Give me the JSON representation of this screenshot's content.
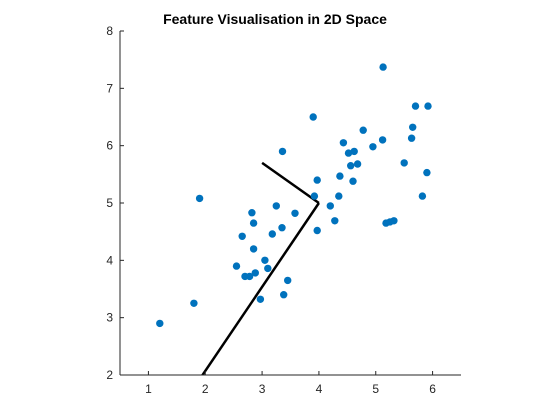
{
  "chart_data": {
    "type": "scatter",
    "title": "Feature Visualisation in 2D Space",
    "xlabel": "",
    "ylabel": "",
    "xlim": [
      0.5,
      6.5
    ],
    "ylim": [
      2,
      8
    ],
    "xticks": [
      1,
      2,
      3,
      4,
      5,
      6
    ],
    "yticks": [
      2,
      3,
      4,
      5,
      6,
      7,
      8
    ],
    "grid": false,
    "legend": "none",
    "colors": {
      "points": "#0072BD",
      "lines": "#000000",
      "axes": "#262626"
    },
    "points": [
      [
        1.2,
        2.9
      ],
      [
        1.8,
        3.25
      ],
      [
        1.9,
        5.08
      ],
      [
        2.55,
        3.9
      ],
      [
        2.65,
        4.42
      ],
      [
        2.7,
        3.72
      ],
      [
        2.78,
        3.72
      ],
      [
        2.82,
        4.83
      ],
      [
        2.85,
        4.2
      ],
      [
        2.85,
        4.65
      ],
      [
        2.88,
        3.78
      ],
      [
        2.97,
        3.32
      ],
      [
        3.05,
        4.0
      ],
      [
        3.1,
        3.86
      ],
      [
        3.18,
        4.46
      ],
      [
        3.25,
        4.95
      ],
      [
        3.35,
        4.57
      ],
      [
        3.36,
        5.9
      ],
      [
        3.38,
        3.4
      ],
      [
        3.45,
        3.65
      ],
      [
        3.58,
        4.82
      ],
      [
        3.9,
        6.5
      ],
      [
        3.92,
        5.12
      ],
      [
        3.97,
        4.52
      ],
      [
        3.97,
        5.4
      ],
      [
        4.2,
        4.95
      ],
      [
        4.28,
        4.69
      ],
      [
        4.35,
        5.12
      ],
      [
        4.37,
        5.47
      ],
      [
        4.43,
        6.05
      ],
      [
        4.52,
        5.87
      ],
      [
        4.56,
        5.65
      ],
      [
        4.6,
        5.38
      ],
      [
        4.62,
        5.9
      ],
      [
        4.68,
        5.68
      ],
      [
        4.78,
        6.27
      ],
      [
        4.95,
        5.98
      ],
      [
        5.12,
        6.1
      ],
      [
        5.13,
        7.37
      ],
      [
        5.18,
        4.65
      ],
      [
        5.25,
        4.67
      ],
      [
        5.32,
        4.69
      ],
      [
        5.5,
        5.7
      ],
      [
        5.63,
        6.13
      ],
      [
        5.65,
        6.32
      ],
      [
        5.7,
        6.69
      ],
      [
        5.82,
        5.12
      ],
      [
        5.9,
        5.53
      ],
      [
        5.92,
        6.69
      ]
    ],
    "lines": [
      {
        "x": [
          4.0,
          1.85
        ],
        "y": [
          5.0,
          1.85
        ]
      },
      {
        "x": [
          4.0,
          3.0
        ],
        "y": [
          5.0,
          5.7
        ]
      }
    ]
  }
}
